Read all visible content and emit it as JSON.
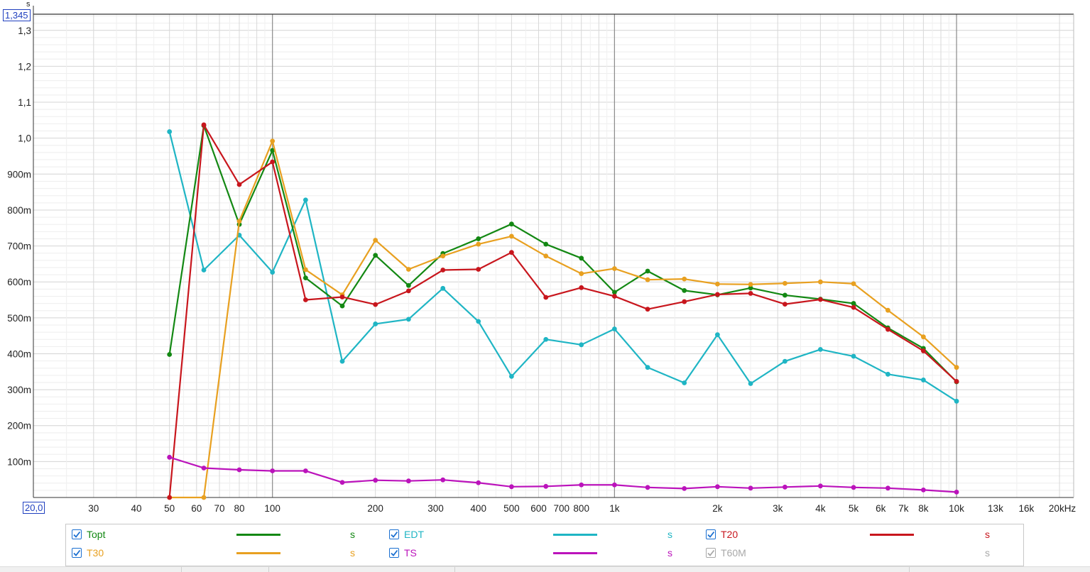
{
  "y_unit_label": "s",
  "ymax_label": "1,345",
  "xmin_label": "20,0",
  "chart_data": {
    "type": "line",
    "x_scale": "log",
    "x_unit": "Hz",
    "xlim": [
      20,
      22000
    ],
    "ylim": [
      0,
      1.345
    ],
    "grid": true,
    "x_ticks": [
      {
        "v": 30,
        "label": "30"
      },
      {
        "v": 40,
        "label": "40"
      },
      {
        "v": 50,
        "label": "50"
      },
      {
        "v": 60,
        "label": "60"
      },
      {
        "v": 70,
        "label": "70"
      },
      {
        "v": 80,
        "label": "80"
      },
      {
        "v": 100,
        "label": "100"
      },
      {
        "v": 200,
        "label": "200"
      },
      {
        "v": 300,
        "label": "300"
      },
      {
        "v": 400,
        "label": "400"
      },
      {
        "v": 500,
        "label": "500"
      },
      {
        "v": 600,
        "label": "600"
      },
      {
        "v": 700,
        "label": "700"
      },
      {
        "v": 800,
        "label": "800"
      },
      {
        "v": 1000,
        "label": "1k"
      },
      {
        "v": 2000,
        "label": "2k"
      },
      {
        "v": 3000,
        "label": "3k"
      },
      {
        "v": 4000,
        "label": "4k"
      },
      {
        "v": 5000,
        "label": "5k"
      },
      {
        "v": 6000,
        "label": "6k"
      },
      {
        "v": 7000,
        "label": "7k"
      },
      {
        "v": 8000,
        "label": "8k"
      },
      {
        "v": 10000,
        "label": "10k"
      },
      {
        "v": 13000,
        "label": "13k",
        "muted": true
      },
      {
        "v": 16000,
        "label": "16k",
        "muted": true
      },
      {
        "v": 20000,
        "label": "20kHz"
      }
    ],
    "y_ticks": [
      {
        "v": 0.1,
        "label": "100m"
      },
      {
        "v": 0.2,
        "label": "200m"
      },
      {
        "v": 0.3,
        "label": "300m"
      },
      {
        "v": 0.4,
        "label": "400m"
      },
      {
        "v": 0.5,
        "label": "500m"
      },
      {
        "v": 0.6,
        "label": "600m"
      },
      {
        "v": 0.7,
        "label": "700m"
      },
      {
        "v": 0.8,
        "label": "800m"
      },
      {
        "v": 0.9,
        "label": "900m"
      },
      {
        "v": 1.0,
        "label": "1,0"
      },
      {
        "v": 1.1,
        "label": "1,1"
      },
      {
        "v": 1.2,
        "label": "1,2"
      },
      {
        "v": 1.3,
        "label": "1,3"
      }
    ],
    "x": [
      50,
      63,
      80,
      100,
      125,
      160,
      200,
      250,
      315,
      400,
      500,
      630,
      800,
      1000,
      1250,
      1600,
      2000,
      2500,
      3150,
      4000,
      5000,
      6300,
      8000,
      10000
    ],
    "series": [
      {
        "name": "EDT",
        "color": "#1fb5c4",
        "values": [
          1.018,
          0.633,
          0.73,
          0.627,
          0.828,
          0.379,
          0.483,
          0.496,
          0.582,
          0.49,
          0.337,
          0.44,
          0.425,
          0.469,
          0.362,
          0.319,
          0.453,
          0.317,
          0.379,
          0.412,
          0.393,
          0.343,
          0.327,
          0.268
        ]
      },
      {
        "name": "Topt",
        "color": "#138813",
        "values": [
          0.398,
          1.035,
          0.76,
          0.966,
          0.611,
          0.533,
          0.674,
          0.59,
          0.679,
          0.72,
          0.761,
          0.705,
          0.666,
          0.571,
          0.63,
          0.576,
          0.564,
          0.583,
          0.563,
          0.552,
          0.54,
          0.472,
          0.415,
          0.322
        ]
      },
      {
        "name": "T30",
        "color": "#e8a020",
        "values": [
          0.0,
          0.0,
          0.769,
          0.992,
          0.634,
          0.564,
          0.716,
          0.635,
          0.672,
          0.705,
          0.727,
          0.672,
          0.623,
          0.637,
          0.606,
          0.608,
          0.594,
          0.593,
          0.596,
          0.6,
          0.595,
          0.521,
          0.447,
          0.362
        ]
      },
      {
        "name": "T20",
        "color": "#c8161d",
        "values": [
          0.0,
          1.037,
          0.871,
          0.934,
          0.55,
          0.558,
          0.537,
          0.575,
          0.633,
          0.635,
          0.682,
          0.557,
          0.584,
          0.56,
          0.524,
          0.545,
          0.565,
          0.568,
          0.538,
          0.551,
          0.529,
          0.468,
          0.408,
          0.323
        ]
      },
      {
        "name": "TS",
        "color": "#bb13bb",
        "values": [
          0.112,
          0.082,
          0.077,
          0.074,
          0.074,
          0.042,
          0.048,
          0.046,
          0.049,
          0.041,
          0.03,
          0.031,
          0.035,
          0.035,
          0.028,
          0.025,
          0.03,
          0.026,
          0.029,
          0.032,
          0.028,
          0.026,
          0.021,
          0.015
        ]
      }
    ]
  },
  "legend": [
    {
      "name": "Topt",
      "unit": "s",
      "color": "#138813",
      "label_color": "#138813",
      "checked": true,
      "disabled": false
    },
    {
      "name": "EDT",
      "unit": "s",
      "color": "#1fb5c4",
      "label_color": "#1fb5c4",
      "checked": true,
      "disabled": false
    },
    {
      "name": "T20",
      "unit": "s",
      "color": "#c8161d",
      "label_color": "#c8161d",
      "checked": true,
      "disabled": false
    },
    {
      "name": "T30",
      "unit": "s",
      "color": "#e8a020",
      "label_color": "#e8a020",
      "checked": true,
      "disabled": false
    },
    {
      "name": "TS",
      "unit": "s",
      "color": "#bb13bb",
      "label_color": "#bb13bb",
      "checked": true,
      "disabled": false
    },
    {
      "name": "T60M",
      "unit": "s",
      "color": "",
      "label_color": "#a8a8a8",
      "checked": true,
      "disabled": true
    }
  ],
  "icons": {
    "checkbox": "checkmark-icon"
  }
}
